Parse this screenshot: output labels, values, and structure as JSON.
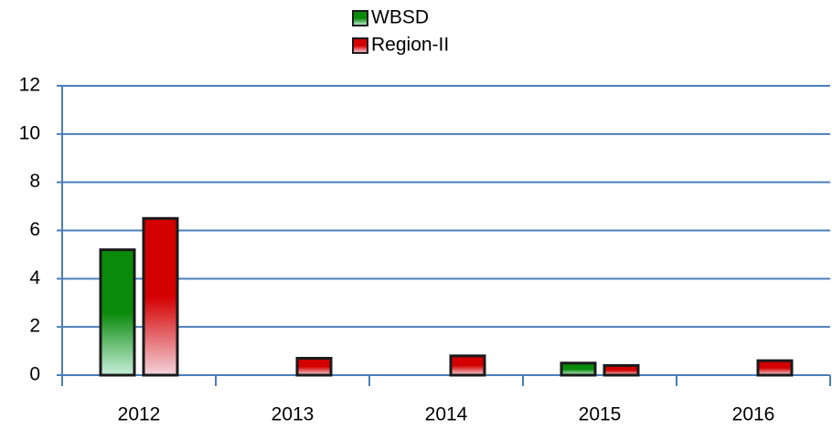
{
  "chart_data": {
    "type": "bar",
    "categories": [
      "2012",
      "2013",
      "2014",
      "2015",
      "2016"
    ],
    "series": [
      {
        "name": "WBSD",
        "color": "#008000",
        "values": [
          5.2,
          null,
          null,
          0.5,
          null
        ]
      },
      {
        "name": "Region-II",
        "color": "#e00000",
        "values": [
          6.5,
          0.7,
          0.8,
          0.4,
          0.6
        ]
      }
    ],
    "ylim": [
      0,
      12
    ],
    "yticks": [
      0,
      2,
      4,
      6,
      8,
      10,
      12
    ],
    "grid": true,
    "legend": "top"
  }
}
